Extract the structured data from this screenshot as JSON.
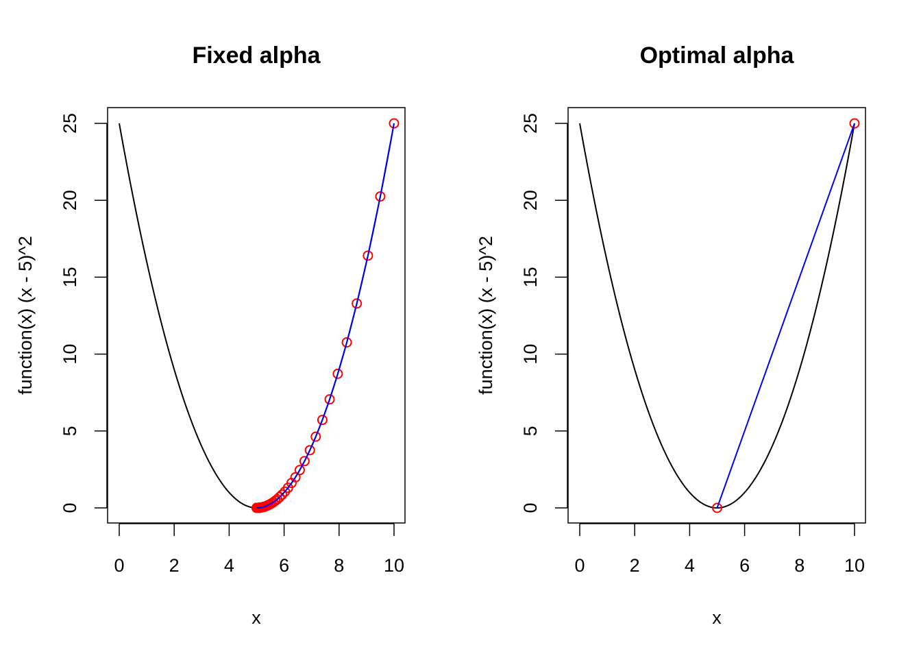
{
  "chart_data": [
    {
      "type": "line",
      "title": "Fixed alpha",
      "xlabel": "x",
      "ylabel": "function(x) (x - 5)^2",
      "xlim": [
        0,
        10
      ],
      "ylim": [
        0,
        25
      ],
      "x_ticks": [
        0,
        2,
        4,
        6,
        8,
        10
      ],
      "y_ticks": [
        0,
        5,
        10,
        15,
        20,
        25
      ],
      "grid": false,
      "series": [
        {
          "kind": "curve",
          "color": "#000000",
          "x": [
            0,
            0.5,
            1,
            1.5,
            2,
            2.5,
            3,
            3.5,
            4,
            4.5,
            5,
            5.5,
            6,
            6.5,
            7,
            7.5,
            8,
            8.5,
            9,
            9.5,
            10
          ],
          "y": [
            25,
            20.25,
            16,
            12.25,
            9,
            6.25,
            4,
            2.25,
            1,
            0.25,
            0,
            0.25,
            1,
            2.25,
            4,
            6.25,
            9,
            12.25,
            16,
            20.25,
            25
          ]
        },
        {
          "kind": "path",
          "color": "#0000ff",
          "marker_color": "#ff0000",
          "x": [
            10,
            9.5,
            9.05,
            8.645,
            8.281,
            7.953,
            7.657,
            7.392,
            7.152,
            6.937,
            6.743,
            6.569,
            6.412,
            6.271,
            6.144,
            6.029,
            5.926,
            5.834,
            5.75,
            5.675,
            5.608,
            5.547,
            5.492,
            5.443,
            5.399,
            5.359,
            5.323,
            5.291,
            5.262,
            5.236,
            5.212,
            5.191,
            5.172,
            5.155,
            5.139,
            5.125,
            5.113,
            5.101,
            5.091,
            5.082,
            5.074,
            5.067,
            5.06,
            5.054,
            5.049,
            5.044,
            5.039,
            5.035,
            5.032,
            5.029,
            5.026,
            5.023,
            5.021,
            5.019,
            5.017,
            5.015,
            5.014,
            5.012,
            5.011,
            5.01,
            5.009,
            5.008,
            5.007,
            5.006,
            5.005,
            5.005,
            5.004,
            5.003,
            5.002,
            5.001
          ],
          "y": [
            25,
            20.25,
            16.4,
            13.29,
            10.76,
            8.72,
            7.06,
            5.72,
            4.63,
            3.75,
            3.04,
            2.46,
            1.99,
            1.62,
            1.31,
            1.06,
            0.86,
            0.7,
            0.56,
            0.46,
            0.37,
            0.3,
            0.24,
            0.2,
            0.16,
            0.13,
            0.1,
            0.08,
            0.07,
            0.06,
            0.04,
            0.04,
            0.03,
            0.02,
            0.02,
            0.02,
            0.01,
            0.01,
            0.01,
            0.01,
            0.01,
            0.0,
            0.0,
            0.0,
            0.0,
            0.0,
            0.0,
            0.0,
            0.0,
            0.0,
            0.0,
            0.0,
            0.0,
            0.0,
            0.0,
            0.0,
            0.0,
            0.0,
            0.0,
            0.0,
            0.0,
            0.0,
            0.0,
            0.0,
            0.0,
            0.0,
            0.0,
            0.0,
            0.0,
            0.0
          ]
        }
      ]
    },
    {
      "type": "line",
      "title": "Optimal alpha",
      "xlabel": "x",
      "ylabel": "function(x) (x - 5)^2",
      "xlim": [
        0,
        10
      ],
      "ylim": [
        0,
        25
      ],
      "x_ticks": [
        0,
        2,
        4,
        6,
        8,
        10
      ],
      "y_ticks": [
        0,
        5,
        10,
        15,
        20,
        25
      ],
      "grid": false,
      "series": [
        {
          "kind": "curve",
          "color": "#000000",
          "x": [
            0,
            0.5,
            1,
            1.5,
            2,
            2.5,
            3,
            3.5,
            4,
            4.5,
            5,
            5.5,
            6,
            6.5,
            7,
            7.5,
            8,
            8.5,
            9,
            9.5,
            10
          ],
          "y": [
            25,
            20.25,
            16,
            12.25,
            9,
            6.25,
            4,
            2.25,
            1,
            0.25,
            0,
            0.25,
            1,
            2.25,
            4,
            6.25,
            9,
            12.25,
            16,
            20.25,
            25
          ]
        },
        {
          "kind": "path",
          "color": "#0000ff",
          "marker_color": "#ff0000",
          "x": [
            10,
            5
          ],
          "y": [
            25,
            0
          ]
        }
      ]
    }
  ]
}
